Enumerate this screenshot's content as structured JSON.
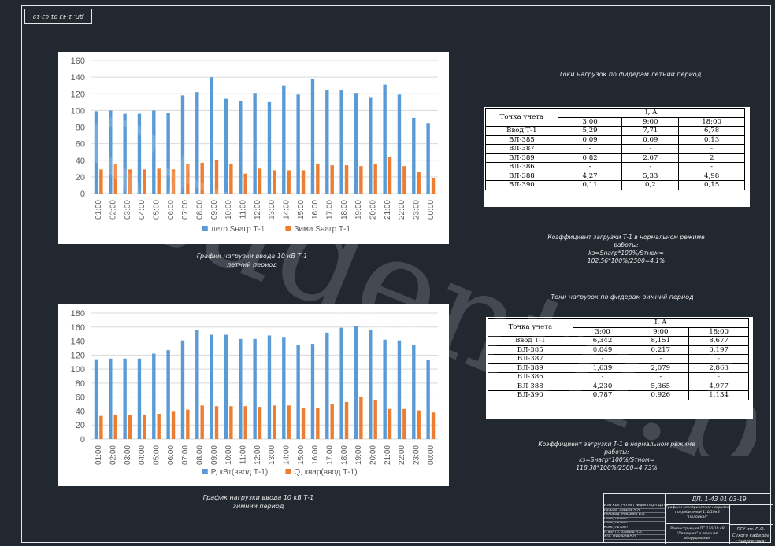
{
  "drawing": {
    "top_stamp": "ДП. 1-43 01 03-19",
    "watermark": "Studentu.by"
  },
  "chart_data": [
    {
      "type": "bar",
      "categories": [
        "01:00",
        "02:00",
        "03:00",
        "04:00",
        "05:00",
        "06:00",
        "07:00",
        "08:00",
        "09:00",
        "10:00",
        "11:00",
        "12:00",
        "13:00",
        "14:00",
        "15:00",
        "16:00",
        "17:00",
        "18:00",
        "19:00",
        "20:00",
        "21:00",
        "22:00",
        "23:00",
        "00:00"
      ],
      "series": [
        {
          "name": "лето Sнагр Т-1",
          "color": "#5b9bd5",
          "values": [
            99,
            100,
            96,
            96,
            100,
            97,
            118,
            122,
            140,
            114,
            111,
            121,
            110,
            130,
            119,
            138,
            124,
            124,
            121,
            116,
            131,
            119,
            91,
            85
          ]
        },
        {
          "name": "Зима Sнагр Т-1",
          "color": "#ed7d31",
          "values": [
            29,
            35,
            29,
            29,
            30,
            29,
            36,
            37,
            40,
            36,
            24,
            30,
            28,
            28,
            28,
            36,
            34,
            34,
            33,
            35,
            44,
            33,
            26,
            19
          ]
        }
      ],
      "y_ticks": [
        0,
        20,
        40,
        60,
        80,
        100,
        120,
        140,
        160
      ],
      "ylim": [
        0,
        160
      ],
      "grid": true,
      "legend": "bottom"
    },
    {
      "type": "bar",
      "categories": [
        "01:00",
        "02:00",
        "03:00",
        "04:00",
        "05:00",
        "06:00",
        "07:00",
        "08:00",
        "09:00",
        "10:00",
        "11:00",
        "12:00",
        "13:00",
        "14:00",
        "15:00",
        "16:00",
        "17:00",
        "18:00",
        "19:00",
        "20:00",
        "21:00",
        "22:00",
        "23:00",
        "00:00"
      ],
      "series": [
        {
          "name": "P, кВт(ввод Т-1)",
          "color": "#5b9bd5",
          "values": [
            114,
            115,
            115,
            115,
            122,
            127,
            141,
            156,
            149,
            149,
            143,
            143,
            148,
            146,
            135,
            136,
            152,
            159,
            162,
            156,
            142,
            141,
            135,
            113
          ]
        },
        {
          "name": "Q, квар(ввод Т-1)",
          "color": "#ed7d31",
          "values": [
            33,
            35,
            34,
            35,
            36,
            39,
            42,
            48,
            47,
            47,
            47,
            46,
            48,
            48,
            44,
            44,
            50,
            53,
            60,
            56,
            43,
            43,
            41,
            38
          ]
        }
      ],
      "y_ticks": [
        0,
        20,
        40,
        60,
        80,
        100,
        120,
        140,
        160,
        180
      ],
      "ylim": [
        0,
        180
      ],
      "grid": true,
      "legend": "bottom"
    }
  ],
  "captions": {
    "chart1_line1": "График нагрузки ввода 10 кВ Т-1",
    "chart1_line2": "летний период",
    "chart2_line1": "График нагрузки ввода 10 кВ Т-1",
    "chart2_line2": "зимний период",
    "table1_title": "Токи нагрузок по фидерам летний период",
    "table2_title": "Токи нагрузок по фидерам зимний период"
  },
  "table_summer": {
    "head_point": "Точка учета",
    "head_current": "I, А",
    "times": [
      "3:00",
      "9:00",
      "18:00"
    ],
    "rows": [
      {
        "point": "Ввод Т-1",
        "v": [
          "5,29",
          "7,71",
          "6,78"
        ]
      },
      {
        "point": "ВЛ-385",
        "v": [
          "0,09",
          "0,09",
          "0,13"
        ]
      },
      {
        "point": "ВЛ-387",
        "v": [
          "-",
          "-",
          "-"
        ]
      },
      {
        "point": "ВЛ-389",
        "v": [
          "0,82",
          "2,07",
          "2"
        ]
      },
      {
        "point": "ВЛ-386",
        "v": [
          "-",
          "-",
          "-"
        ]
      },
      {
        "point": "ВЛ-388",
        "v": [
          "4,27",
          "5,33",
          "4,98"
        ]
      },
      {
        "point": "ВЛ-390",
        "v": [
          "0,11",
          "0,2",
          "0,15"
        ]
      }
    ]
  },
  "table_winter": {
    "head_point": "Точка учета",
    "head_current": "I, А",
    "times": [
      "3:00",
      "9:00",
      "18:00"
    ],
    "rows": [
      {
        "point": "Ввод Т-1",
        "v": [
          "6,342",
          "8,151",
          "8,677"
        ]
      },
      {
        "point": "ВЛ-385",
        "v": [
          "0,049",
          "0,217",
          "0,197"
        ]
      },
      {
        "point": "ВЛ-387",
        "v": [
          "-",
          "-",
          "-"
        ]
      },
      {
        "point": "ВЛ-389",
        "v": [
          "1,639",
          "2,079",
          "2,863"
        ]
      },
      {
        "point": "ВЛ-386",
        "v": [
          "-",
          "-",
          "-"
        ]
      },
      {
        "point": "ВЛ-388",
        "v": [
          "4,230",
          "5,365",
          "4,977"
        ]
      },
      {
        "point": "ВЛ-390",
        "v": [
          "0,787",
          "0,926",
          "1,134"
        ]
      }
    ]
  },
  "formula_summer": {
    "line1": "Коэффициент загрузки Т-1 в нормальном режиме работы:",
    "line2": "kз=Sнагр*100%/Sтном=",
    "line3": "102,56*100%/2500=4,1%"
  },
  "formula_winter": {
    "line1": "Коэффициент загрузки Т-1 в нормальном режиме работы:",
    "line2": "kз=Sнагр*100%/Sтном=",
    "line3": "118,38*100%/2500=4,73%"
  },
  "title_block": {
    "code": "ДП. 1-43 01 03-19",
    "rows": [
      "Изм Кол.уч Лист №док Подп Дата",
      "Разраб. Зайцев А.А.",
      "Руковод. Мирзоев В.В.",
      "Консультант",
      "Консультант",
      "Консультант",
      "Н.контр. Зайцев А.А.",
      "Утв. Мирзоев А.А."
    ],
    "name1": "Графики электрических нагрузок потребителей 110/10кВ \"Полоцкая\"",
    "name2": "Реконструкция ПС 110/10 кВ \"Полоцкая\" с заменой оборудования",
    "org": "ПГУ им. П.О. Сухого кафедра \"Энергетика\""
  }
}
